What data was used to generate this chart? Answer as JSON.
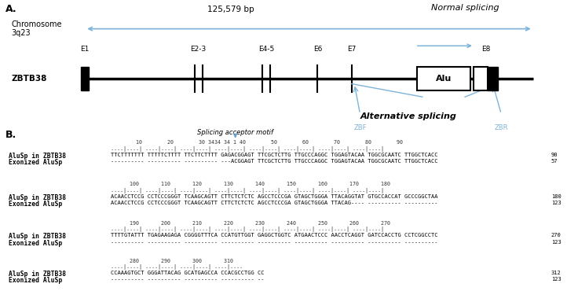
{
  "title_a": "A.",
  "title_b": "B.",
  "chr_label": "Chromosome\n3q23",
  "gene_label": "ZBTB38",
  "bp_label": "125,579 bp",
  "normal_splicing": "Normal splicing",
  "alt_splicing": "Alternative splicing",
  "exons": [
    "E1",
    "E2-3",
    "E4-5",
    "E6",
    "E7",
    "E8"
  ],
  "zbf_label": "ZBF",
  "zbr_label": "ZBR",
  "alu_label": "Alu",
  "splicing_acceptor": "Splicing acceptor motif",
  "bg_color": "#ffffff",
  "arrow_color": "#7eb4d9",
  "blocks": [
    {
      "ruler": "        10        20        30 3434 34 1 40        50        60        70        80        90",
      "dots": "....|....| ....|....| ....|....| ....|....| ....|....| ....|....| ....|....| ....|....|",
      "label1": "AluSp in ZBTB38",
      "label2": "Exonized AluSp",
      "seq1": "TTCTTTTTTT TTTTTCTTTT TTCTTCTTTT GAGACGGAGT TTCGCTCTTG TTGCCCAGGC TGGAGTACAA TGGCGCAATC TTGGCTCACC",
      "seq2": "---------- ---------- ---------- ---ACGGAGT TTCGCTCTTG TTGCCCAGGC TGGAGTACAA TGGCGCAATC TTGGCTCACC",
      "num1": "90",
      "num2": "57"
    },
    {
      "ruler": "      100       110       120       130       140       150       160       170       180",
      "dots": "....|....| ....|....| ....|....| ....|....| ....|....| ....|....| ....|....| ....|....|",
      "label1": "AluSp in ZBTB38",
      "label2": "Exonized AluSp",
      "seq1": "ACAACCTCCG CCTCCCGGGT TCAAGCAGTT CTTCTCTCTC AGCCTCCCGA GTAGCTGGGA TTACAGGTAT GTGCCACCAT GCCCGGCTAA",
      "seq2": "ACAACCTCCG CCTCCCGGGT TCAAGCAGTT CTTCTCTCTC AGCCTCCCGA GTAGCTGGGA TTACAG---- ---------- ----------",
      "num1": "180",
      "num2": "123"
    },
    {
      "ruler": "      190       200       210       220       230       240       250       260       270",
      "dots": "....|....| ....|....| ....|....| ....|....| ....|....| ....|....| ....|....| ....|....|",
      "label1": "AluSp in ZBTB38",
      "label2": "Exonized AluSp",
      "seq1": "TTTTGTATTT TGAGAAGAGA CGGGGTTTCA CCATGTTGGT GAGGCTGGTC ATGAACTCCC AACCTCAGGT GATCCACCTG CCTCGGCCTC",
      "seq2": "---------- ---------- ---------- ---------- ---------- ---------- ---------- ---------- ----------",
      "num1": "270",
      "num2": "123"
    },
    {
      "ruler": "      280       290       300       310",
      "dots": "....|....| ....|....| ....|....| ....|....",
      "label1": "AluSp in ZBTB38",
      "label2": "Exonized AluSp",
      "seq1": "CCAAAGTGCT GGGATTACAG GCATGAGCCA CCACGCCTGG CC",
      "seq2": "---------- ---------- ---------- ---------- --",
      "num1": "312",
      "num2": "123"
    }
  ]
}
